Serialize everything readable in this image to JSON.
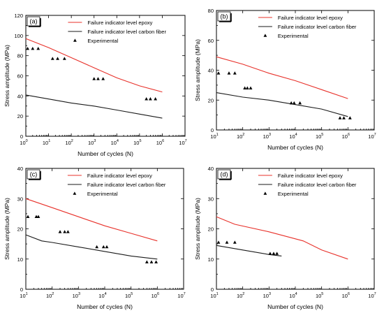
{
  "chart_data": [
    {
      "type": "line",
      "panel_label": "(a)",
      "xlabel": "Number of cycles (N)",
      "ylabel": "Stress amplitude (MPa)",
      "xscale": "log",
      "xlim": [
        1,
        10000000
      ],
      "ylim": [
        0,
        120
      ],
      "x_ticks": [
        1,
        10,
        100,
        1000,
        10000,
        100000,
        1000000,
        10000000
      ],
      "x_tick_labels": [
        [
          "10",
          "0"
        ],
        [
          "10",
          "1"
        ],
        [
          "10",
          "2"
        ],
        [
          "10",
          "3"
        ],
        [
          "10",
          "4"
        ],
        [
          "10",
          "5"
        ],
        [
          "10",
          "6"
        ],
        [
          "10",
          "7"
        ]
      ],
      "y_ticks": [
        0,
        20,
        40,
        60,
        80,
        100,
        120
      ],
      "y_tick_labels": [
        "0",
        "20",
        "40",
        "60",
        "80",
        "100",
        "120"
      ],
      "legend_position": "top-right",
      "series": [
        {
          "name": "Failure indicator level epoxy",
          "kind": "line",
          "color": "#e8312a",
          "x": [
            1,
            10,
            100,
            1000,
            10000,
            100000,
            1000000
          ],
          "y": [
            97,
            88,
            78,
            68,
            58,
            50,
            44
          ]
        },
        {
          "name": "Failure indicator level carbon fiber",
          "kind": "line",
          "color": "#1a1a1a",
          "x": [
            1,
            10,
            100,
            1000,
            10000,
            100000,
            1000000
          ],
          "y": [
            41,
            37,
            33,
            30,
            26,
            22,
            18
          ]
        },
        {
          "name": "Experimental",
          "kind": "scatter",
          "marker": "triangle",
          "color": "#000000",
          "x": [
            1.2,
            2,
            3.5,
            15,
            25,
            50,
            1000,
            1500,
            2500,
            200000,
            300000,
            500000
          ],
          "y": [
            87,
            87,
            87,
            77,
            77,
            77,
            57,
            57,
            57,
            37,
            37,
            37
          ]
        }
      ]
    },
    {
      "type": "line",
      "panel_label": "(b)",
      "xlabel": "Number of cycles (N)",
      "ylabel": "Stress amplitude (MPa)",
      "xscale": "log",
      "xlim": [
        10,
        10000000
      ],
      "ylim": [
        0,
        80
      ],
      "x_ticks": [
        10,
        100,
        1000,
        10000,
        100000,
        1000000,
        10000000
      ],
      "x_tick_labels": [
        [
          "10",
          "1"
        ],
        [
          "10",
          "2"
        ],
        [
          "10",
          "3"
        ],
        [
          "10",
          "4"
        ],
        [
          "10",
          "5"
        ],
        [
          "10",
          "6"
        ],
        [
          "10",
          "7"
        ]
      ],
      "y_ticks": [
        0,
        20,
        40,
        60,
        80
      ],
      "y_tick_labels": [
        "0",
        "20",
        "40",
        "60",
        "80"
      ],
      "legend_position": "top-right",
      "series": [
        {
          "name": "Failure indicator level epoxy",
          "kind": "line",
          "color": "#e8312a",
          "x": [
            10,
            100,
            1000,
            10000,
            100000,
            1000000
          ],
          "y": [
            49,
            44,
            38,
            33,
            27,
            21
          ]
        },
        {
          "name": "Failure indicator level carbon fiber",
          "kind": "line",
          "color": "#1a1a1a",
          "x": [
            10,
            100,
            1000,
            10000,
            100000,
            1000000
          ],
          "y": [
            25,
            22,
            20,
            17,
            14,
            9
          ]
        },
        {
          "name": "Experimental",
          "kind": "scatter",
          "marker": "triangle",
          "color": "#000000",
          "x": [
            12,
            30,
            50,
            120,
            150,
            200,
            7000,
            9000,
            15000,
            500000,
            700000,
            1200000
          ],
          "y": [
            38,
            38,
            38,
            28,
            28,
            28,
            18,
            18,
            18,
            8,
            8,
            8
          ]
        }
      ]
    },
    {
      "type": "line",
      "panel_label": "(c)",
      "xlabel": "Number of cycles (N)",
      "ylabel": "Stress amplitude (MPa)",
      "xscale": "log",
      "xlim": [
        10,
        10000000
      ],
      "ylim": [
        0,
        40
      ],
      "x_ticks": [
        10,
        100,
        1000,
        10000,
        100000,
        1000000,
        10000000
      ],
      "x_tick_labels": [
        [
          "10",
          "1"
        ],
        [
          "10",
          "2"
        ],
        [
          "10",
          "3"
        ],
        [
          "10",
          "4"
        ],
        [
          "10",
          "5"
        ],
        [
          "10",
          "6"
        ],
        [
          "10",
          "7"
        ]
      ],
      "y_ticks": [
        0,
        10,
        20,
        30,
        40
      ],
      "y_tick_labels": [
        "0",
        "10",
        "20",
        "30",
        "40"
      ],
      "legend_position": "top-right",
      "series": [
        {
          "name": "Failure indicator level epoxy",
          "kind": "line",
          "color": "#e8312a",
          "x": [
            10,
            100,
            1000,
            10000,
            100000,
            1000000
          ],
          "y": [
            30,
            27,
            24,
            21,
            18.5,
            16
          ]
        },
        {
          "name": "Failure indicator level carbon fiber",
          "kind": "line",
          "color": "#1a1a1a",
          "x": [
            10,
            40,
            100,
            1000,
            10000,
            100000,
            1000000
          ],
          "y": [
            18,
            16,
            15.5,
            14,
            12.5,
            11,
            10
          ]
        },
        {
          "name": "Experimental",
          "kind": "scatter",
          "marker": "triangle",
          "color": "#000000",
          "x": [
            12,
            25,
            30,
            200,
            300,
            400,
            5000,
            9000,
            12000,
            400000,
            600000,
            900000
          ],
          "y": [
            24,
            24,
            24,
            19,
            19,
            19,
            14,
            14,
            14,
            9,
            9,
            9
          ]
        }
      ]
    },
    {
      "type": "line",
      "panel_label": "(d)",
      "xlabel": "Number of cycles (N)",
      "ylabel": "Stress amplitude (MPa)",
      "xscale": "log",
      "xlim": [
        10,
        10000000
      ],
      "ylim": [
        0,
        40
      ],
      "x_ticks": [
        10,
        100,
        1000,
        10000,
        100000,
        1000000,
        10000000
      ],
      "x_tick_labels": [
        [
          "10",
          "1"
        ],
        [
          "10",
          "2"
        ],
        [
          "10",
          "3"
        ],
        [
          "10",
          "4"
        ],
        [
          "10",
          "5"
        ],
        [
          "10",
          "6"
        ],
        [
          "10",
          "7"
        ]
      ],
      "y_ticks": [
        0,
        10,
        20,
        30,
        40
      ],
      "y_tick_labels": [
        "0",
        "10",
        "20",
        "30",
        "40"
      ],
      "legend_position": "top-right",
      "series": [
        {
          "name": "Failure indicator level epoxy",
          "kind": "line",
          "color": "#e8312a",
          "x": [
            10,
            50,
            1000,
            20000,
            100000,
            1000000
          ],
          "y": [
            24,
            21.5,
            19,
            16,
            13,
            10
          ]
        },
        {
          "name": "Failure indicator level carbon fiber",
          "kind": "line",
          "color": "#1a1a1a",
          "x": [
            10,
            100,
            1000,
            3000
          ],
          "y": [
            14.5,
            13,
            11.5,
            11
          ]
        },
        {
          "name": "Experimental",
          "kind": "scatter",
          "marker": "triangle",
          "color": "#000000",
          "x": [
            12,
            25,
            50,
            1100,
            1500,
            2000
          ],
          "y": [
            15.5,
            15.5,
            15.5,
            11.8,
            11.8,
            11.8
          ]
        }
      ]
    }
  ]
}
